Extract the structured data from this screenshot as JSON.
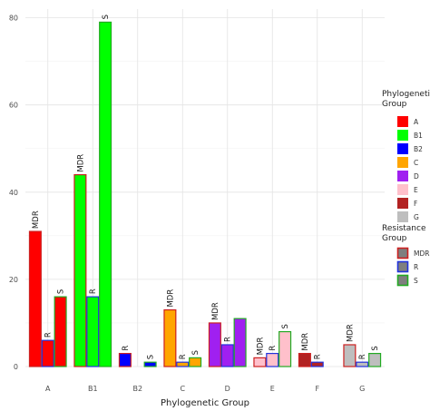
{
  "chart_data": {
    "type": "bar",
    "xlabel": "Phylogenetic Group",
    "ylabel": "",
    "ylim": [
      0,
      82
    ],
    "y_ticks": [
      0,
      20,
      40,
      60,
      80
    ],
    "categories": [
      "A",
      "B1",
      "B2",
      "C",
      "D",
      "E",
      "F",
      "G"
    ],
    "grid": true,
    "legend_position": "right",
    "fill_legend": {
      "title_lines": [
        "Phylogenetic",
        "Group"
      ],
      "entries": [
        {
          "label": "A",
          "color": "#ff0000"
        },
        {
          "label": "B1",
          "color": "#00ff00"
        },
        {
          "label": "B2",
          "color": "#0000ff"
        },
        {
          "label": "C",
          "color": "#ffa500"
        },
        {
          "label": "D",
          "color": "#a020f0"
        },
        {
          "label": "E",
          "color": "#ffc0cb"
        },
        {
          "label": "F",
          "color": "#b22222"
        },
        {
          "label": "G",
          "color": "#bebebe"
        }
      ]
    },
    "outline_legend": {
      "title_lines": [
        "Resistance",
        "Group"
      ],
      "entries": [
        {
          "label": "MDR",
          "color": "#cc2020"
        },
        {
          "label": "R",
          "color": "#2233dd"
        },
        {
          "label": "S",
          "color": "#22aa22"
        }
      ]
    },
    "series": [
      {
        "name": "MDR",
        "values": [
          31,
          44,
          3,
          13,
          10,
          2,
          3,
          5
        ]
      },
      {
        "name": "R",
        "values": [
          6,
          16,
          0,
          1,
          5,
          3,
          1,
          1
        ]
      },
      {
        "name": "S",
        "values": [
          16,
          79,
          1,
          2,
          11,
          8,
          0,
          3
        ]
      }
    ],
    "bar_labels": [
      [
        "MDR",
        "R",
        "S"
      ],
      [
        "MDR",
        "R",
        "S"
      ],
      [
        "R",
        "",
        "S"
      ],
      [
        "MDR",
        "R",
        "S"
      ],
      [
        "MDR",
        "R",
        ""
      ],
      [
        "MDR",
        "R",
        "S"
      ],
      [
        "MDR",
        "R",
        ""
      ],
      [
        "MDR",
        "R",
        "S"
      ]
    ]
  }
}
